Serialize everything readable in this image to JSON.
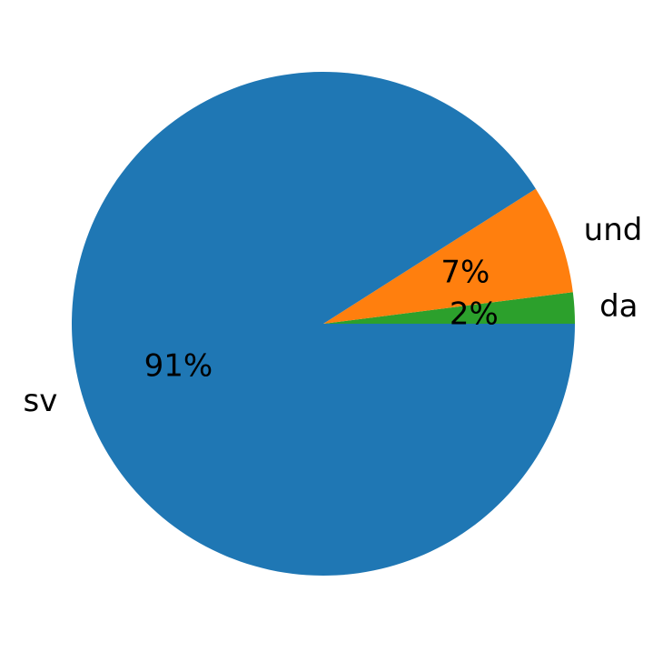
{
  "chart_data": {
    "type": "pie",
    "title": "",
    "slices": [
      {
        "label": "da",
        "value": 2,
        "pct_label": "2%",
        "color": "#2ca02c"
      },
      {
        "label": "und",
        "value": 7,
        "pct_label": "7%",
        "color": "#ff7f0e"
      },
      {
        "label": "sv",
        "value": 91,
        "pct_label": "91%",
        "color": "#1f77b4"
      }
    ],
    "start_angle_deg": 0,
    "direction": "counterclockwise",
    "legend": "none"
  }
}
